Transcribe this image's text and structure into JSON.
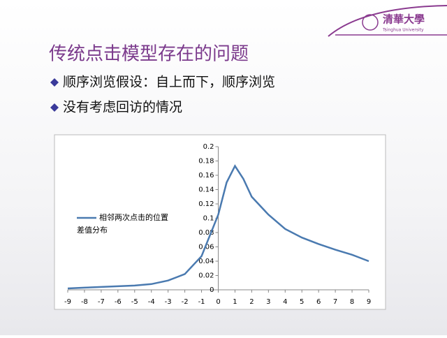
{
  "logo": {
    "name": "清華大學",
    "subtitle": "Tsinghua University"
  },
  "slide": {
    "title": "传统点击模型存在的问题",
    "bullets": [
      "顺序浏览假设：自上而下，顺序浏览",
      "没有考虑回访的情况"
    ]
  },
  "chart_data": {
    "type": "line",
    "x": [
      -9,
      -8,
      -7,
      -6,
      -5,
      -4,
      -3,
      -2,
      -1,
      0,
      0.5,
      1,
      1.5,
      2,
      3,
      4,
      5,
      6,
      7,
      8,
      9
    ],
    "series": [
      {
        "name": "相邻两次点击的位置差值分布",
        "color": "#4a7ab0",
        "values": [
          0.002,
          0.003,
          0.004,
          0.005,
          0.006,
          0.008,
          0.013,
          0.022,
          0.047,
          0.105,
          0.15,
          0.173,
          0.155,
          0.13,
          0.105,
          0.085,
          0.073,
          0.064,
          0.056,
          0.049,
          0.04
        ]
      }
    ],
    "xlim": [
      -9,
      9
    ],
    "xticks": [
      -9,
      -8,
      -7,
      -6,
      -5,
      -4,
      -3,
      -2,
      -1,
      0,
      1,
      2,
      3,
      4,
      5,
      6,
      7,
      8,
      9
    ],
    "ylim": [
      0,
      0.2
    ],
    "yticks": [
      0,
      0.02,
      0.04,
      0.06,
      0.08,
      0.1,
      0.12,
      0.14,
      0.16,
      0.18,
      0.2
    ],
    "legend": "left"
  }
}
